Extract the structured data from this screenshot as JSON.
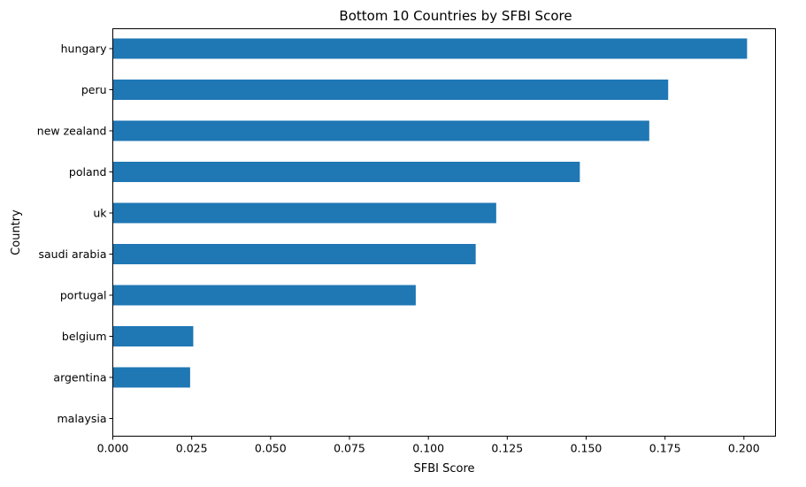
{
  "chart_data": {
    "type": "bar",
    "orientation": "horizontal",
    "title": "Bottom 10 Countries by SFBI Score",
    "xlabel": "SFBI Score",
    "ylabel": "Country",
    "categories": [
      "hungary",
      "peru",
      "new zealand",
      "poland",
      "uk",
      "saudi arabia",
      "portugal",
      "belgium",
      "argentina",
      "malaysia"
    ],
    "values": [
      0.201,
      0.176,
      0.17,
      0.148,
      0.1215,
      0.115,
      0.096,
      0.0255,
      0.0245,
      0.0
    ],
    "xlim": [
      0.0,
      0.21
    ],
    "xticks": [
      "0.000",
      "0.025",
      "0.050",
      "0.075",
      "0.100",
      "0.125",
      "0.150",
      "0.175",
      "0.200"
    ],
    "grid": false,
    "bar_color": "#1f77b4"
  }
}
